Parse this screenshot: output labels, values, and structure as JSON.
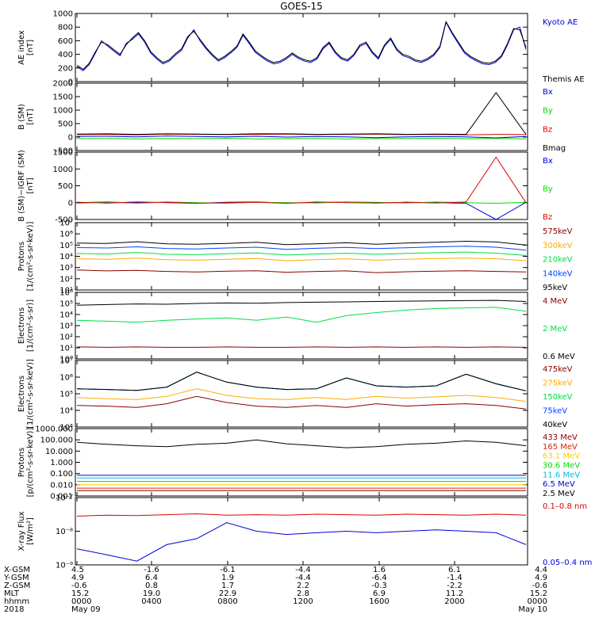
{
  "title": "GOES-15",
  "chart_data": [
    {
      "type": "line",
      "ylabel": "AE index\n[nT]",
      "yscale": "linear",
      "ylim": [
        0,
        1000
      ],
      "yticks": [
        0,
        200,
        400,
        600,
        800,
        1000
      ],
      "yticklabels": [
        "0",
        "200",
        "400",
        "600",
        "800",
        "1000"
      ],
      "series": [
        {
          "name": "Kyoto AE",
          "color": "#0000dd",
          "values": [
            220,
            160,
            250,
            420,
            600,
            520,
            450,
            380,
            560,
            620,
            700,
            580,
            420,
            330,
            260,
            300,
            390,
            460,
            640,
            760,
            600,
            480,
            380,
            300,
            350,
            420,
            500,
            680,
            560,
            430,
            360,
            300,
            260,
            280,
            330,
            400,
            340,
            300,
            280,
            330,
            480,
            560,
            420,
            330,
            300,
            380,
            520,
            560,
            420,
            330,
            520,
            620,
            460,
            380,
            350,
            300,
            280,
            320,
            380,
            500,
            870,
            700,
            560,
            420,
            350,
            300,
            260,
            250,
            280,
            360,
            540,
            760,
            800,
            470
          ]
        },
        {
          "name": "Themis AE",
          "color": "#000000",
          "values": [
            240,
            180,
            270,
            440,
            580,
            540,
            470,
            400,
            540,
            640,
            720,
            600,
            440,
            350,
            280,
            320,
            410,
            480,
            660,
            740,
            620,
            500,
            400,
            320,
            370,
            440,
            520,
            700,
            580,
            450,
            380,
            320,
            280,
            300,
            350,
            420,
            360,
            320,
            300,
            350,
            500,
            580,
            440,
            350,
            320,
            400,
            540,
            580,
            440,
            350,
            540,
            640,
            480,
            400,
            370,
            320,
            300,
            340,
            400,
            520,
            880,
            720,
            580,
            440,
            370,
            320,
            280,
            270,
            300,
            380,
            560,
            780,
            760,
            500
          ]
        }
      ]
    },
    {
      "type": "line",
      "ylabel": "B (SM)\n[nT]",
      "yscale": "linear",
      "ylim": [
        -500,
        2000
      ],
      "yticks": [
        -500,
        0,
        500,
        1000,
        1500,
        2000
      ],
      "yticklabels": [
        "-500",
        "0",
        "500",
        "1000",
        "1500",
        "2000"
      ],
      "series": [
        {
          "name": "Bx",
          "color": "#0000dd",
          "values": [
            20,
            30,
            10,
            40,
            20,
            10,
            30,
            0,
            20,
            10,
            -20,
            10,
            20,
            10,
            -30,
            20
          ]
        },
        {
          "name": "By",
          "color": "#00dd00",
          "values": [
            -60,
            -50,
            -70,
            -50,
            -60,
            -40,
            -70,
            -60,
            -50,
            -70,
            -60,
            -50,
            -40,
            -60,
            -50,
            -70
          ]
        },
        {
          "name": "Bz",
          "color": "#dd0000",
          "values": [
            90,
            100,
            80,
            110,
            100,
            90,
            100,
            110,
            90,
            100,
            110,
            90,
            100,
            80,
            100,
            90
          ]
        },
        {
          "name": "Bmag",
          "color": "#000000",
          "values": [
            110,
            120,
            100,
            120,
            110,
            100,
            120,
            120,
            100,
            110,
            120,
            100,
            110,
            100,
            1650,
            100
          ]
        }
      ]
    },
    {
      "type": "line",
      "ylabel": "B (SM)−IGRF (SM)\n[nT]",
      "yscale": "linear",
      "ylim": [
        -500,
        1500
      ],
      "yticks": [
        -500,
        0,
        500,
        1000,
        1500
      ],
      "yticklabels": [
        "-500",
        "0",
        "500",
        "1000",
        "1500"
      ],
      "series": [
        {
          "name": "Bx",
          "color": "#0000dd",
          "values": [
            10,
            -10,
            20,
            0,
            -20,
            10,
            20,
            -10,
            0,
            20,
            -10,
            10,
            0,
            -20,
            -600,
            10
          ]
        },
        {
          "name": "By",
          "color": "#00dd00",
          "values": [
            -20,
            10,
            -10,
            20,
            0,
            -20,
            10,
            0,
            -10,
            20,
            10,
            -10,
            20,
            0,
            -20,
            10
          ]
        },
        {
          "name": "Bz",
          "color": "#dd0000",
          "values": [
            0,
            20,
            -10,
            10,
            -20,
            0,
            10,
            -20,
            20,
            0,
            -10,
            10,
            -10,
            20,
            1350,
            0
          ]
        }
      ]
    },
    {
      "type": "line",
      "ylabel": "Protons\n[1/(cm²-s-sr-keV)]",
      "yscale": "log",
      "ylim": [
        10,
        10000000
      ],
      "yticks": [
        10,
        100,
        1000,
        10000,
        100000,
        1000000,
        10000000
      ],
      "yticklabels": [
        "10¹",
        "10²",
        "10³",
        "10⁴",
        "10⁵",
        "10⁶",
        "10⁷"
      ],
      "series": [
        {
          "name": "575keV",
          "color": "#880000",
          "values": [
            600,
            500,
            550,
            450,
            400,
            480,
            520,
            380,
            450,
            500,
            350,
            420,
            480,
            520,
            450,
            400
          ]
        },
        {
          "name": "300keV",
          "color": "#ffaa00",
          "values": [
            6000,
            5500,
            7000,
            5000,
            4500,
            5500,
            6500,
            4000,
            5000,
            6000,
            4500,
            5500,
            6500,
            7000,
            6000,
            4000
          ]
        },
        {
          "name": "210keV",
          "color": "#00dd44",
          "values": [
            18000,
            16000,
            22000,
            15000,
            14000,
            17000,
            20000,
            13000,
            16000,
            19000,
            15000,
            18000,
            21000,
            24000,
            19000,
            12000
          ]
        },
        {
          "name": "140keV",
          "color": "#0044ff",
          "values": [
            60000,
            55000,
            70000,
            50000,
            45000,
            55000,
            65000,
            42000,
            52000,
            62000,
            48000,
            58000,
            70000,
            80000,
            65000,
            35000
          ]
        },
        {
          "name": "95keV",
          "color": "#000000",
          "values": [
            150000,
            140000,
            200000,
            130000,
            120000,
            140000,
            180000,
            110000,
            130000,
            160000,
            120000,
            150000,
            180000,
            220000,
            190000,
            100000
          ]
        }
      ]
    },
    {
      "type": "line",
      "ylabel": "Electrons\n[1/(cm²-s-sr)]",
      "yscale": "log",
      "ylim": [
        1,
        1000000
      ],
      "yticks": [
        1,
        10,
        100,
        1000,
        10000,
        100000,
        1000000
      ],
      "yticklabels": [
        "10⁰",
        "10¹",
        "10²",
        "10³",
        "10⁴",
        "10⁵",
        "10⁶"
      ],
      "series": [
        {
          "name": "4 MeV",
          "color": "#880000",
          "values": [
            12,
            11,
            12,
            11,
            11,
            12,
            11,
            11,
            12,
            11,
            12,
            11,
            12,
            11,
            12,
            11
          ]
        },
        {
          "name": "2 MeV",
          "color": "#00dd44",
          "values": [
            3000,
            2500,
            2000,
            3000,
            4000,
            5000,
            3000,
            6000,
            2000,
            8000,
            15000,
            25000,
            35000,
            40000,
            45000,
            20000
          ]
        },
        {
          "name": "0.6 MeV",
          "color": "#000000",
          "values": [
            70000,
            80000,
            90000,
            85000,
            100000,
            110000,
            105000,
            120000,
            130000,
            140000,
            150000,
            160000,
            170000,
            180000,
            190000,
            150000
          ]
        }
      ]
    },
    {
      "type": "line",
      "ylabel": "Electrons\n[1/(cm²-s-sr-keV)]",
      "yscale": "log",
      "ylim": [
        1000,
        10000000
      ],
      "yticks": [
        1000,
        10000,
        100000,
        1000000,
        10000000
      ],
      "yticklabels": [
        "10³",
        "10⁴",
        "10⁵",
        "10⁶",
        "10⁷"
      ],
      "series": [
        {
          "name": "475keV",
          "color": "#880000",
          "values": [
            20000,
            18000,
            15000,
            25000,
            70000,
            30000,
            18000,
            15000,
            20000,
            15000,
            25000,
            18000,
            22000,
            25000,
            20000,
            12000
          ]
        },
        {
          "name": "275keV",
          "color": "#ffaa00",
          "values": [
            60000,
            50000,
            45000,
            70000,
            200000,
            80000,
            50000,
            45000,
            60000,
            45000,
            70000,
            55000,
            65000,
            80000,
            60000,
            35000
          ]
        },
        {
          "name": "150keV",
          "color": "#00dd44",
          "values": [
            200000,
            180000,
            160000,
            250000,
            2000000,
            500000,
            250000,
            180000,
            200000,
            900000,
            300000,
            250000,
            300000,
            1500000,
            400000,
            150000
          ]
        },
        {
          "name": "75keV",
          "color": "#0044ff",
          "values": [
            200000,
            180000,
            160000,
            250000,
            2000000,
            500000,
            250000,
            180000,
            200000,
            900000,
            300000,
            250000,
            300000,
            1500000,
            400000,
            150000
          ]
        },
        {
          "name": "40keV",
          "color": "#000000",
          "values": [
            200000,
            180000,
            160000,
            250000,
            2000000,
            500000,
            250000,
            180000,
            200000,
            900000,
            300000,
            250000,
            300000,
            1500000,
            400000,
            150000
          ]
        }
      ]
    },
    {
      "type": "line",
      "ylabel": "Protons\n[p/(cm²-s-sr-keV)]",
      "yscale": "log",
      "ylim": [
        0.001,
        1000
      ],
      "yticks": [
        0.001,
        0.01,
        0.1,
        1,
        10,
        100,
        1000
      ],
      "yticklabels": [
        "0.001",
        "0.010",
        "0.100",
        "1.000",
        "10.000",
        "100.000",
        "1000.000"
      ],
      "series": [
        {
          "name": "433 MeV",
          "color": "#880000",
          "values": [
            0.003,
            0.003,
            0.003,
            0.003,
            0.003,
            0.003,
            0.003,
            0.003,
            0.003,
            0.003,
            0.003,
            0.003,
            0.003,
            0.003,
            0.003,
            0.003
          ]
        },
        {
          "name": "165 MeV",
          "color": "#dd2200",
          "values": [
            0.005,
            0.005,
            0.005,
            0.005,
            0.005,
            0.005,
            0.005,
            0.005,
            0.005,
            0.005,
            0.005,
            0.005,
            0.005,
            0.005,
            0.005,
            0.005
          ]
        },
        {
          "name": "63.1 MeV",
          "color": "#ffcc00",
          "values": [
            0.01,
            0.01,
            0.01,
            0.01,
            0.01,
            0.01,
            0.01,
            0.01,
            0.01,
            0.01,
            0.01,
            0.01,
            0.01,
            0.01,
            0.01,
            0.01
          ]
        },
        {
          "name": "30.6 MeV",
          "color": "#00dd00",
          "values": [
            0.02,
            0.02,
            0.02,
            0.02,
            0.02,
            0.02,
            0.02,
            0.02,
            0.02,
            0.02,
            0.02,
            0.02,
            0.02,
            0.02,
            0.02,
            0.02
          ]
        },
        {
          "name": "11.6 MeV",
          "color": "#00bbdd",
          "values": [
            0.04,
            0.04,
            0.04,
            0.04,
            0.04,
            0.04,
            0.04,
            0.04,
            0.04,
            0.04,
            0.04,
            0.04,
            0.04,
            0.04,
            0.04,
            0.04
          ]
        },
        {
          "name": "6.5 MeV",
          "color": "#0000dd",
          "values": [
            0.07,
            0.07,
            0.07,
            0.07,
            0.07,
            0.07,
            0.07,
            0.07,
            0.07,
            0.07,
            0.07,
            0.07,
            0.07,
            0.07,
            0.07,
            0.07
          ]
        },
        {
          "name": "2.5 MeV",
          "color": "#000000",
          "values": [
            60,
            40,
            30,
            25,
            40,
            50,
            100,
            45,
            30,
            20,
            25,
            40,
            50,
            80,
            60,
            30
          ]
        }
      ]
    },
    {
      "type": "line",
      "ylabel": "X-ray Flux\n[W/m²]",
      "yscale": "log",
      "ylim": [
        1e-09,
        1e-07
      ],
      "yticks": [
        1e-09,
        1e-08,
        1e-07
      ],
      "yticklabels": [
        "10⁻⁹",
        "10⁻⁸",
        "10⁻⁷"
      ],
      "series": [
        {
          "name": "0.1–0.8 nm",
          "color": "#dd0000",
          "values": [
            2.8e-08,
            3e-08,
            2.9e-08,
            3.1e-08,
            3.3e-08,
            3e-08,
            3.1e-08,
            3e-08,
            3.2e-08,
            3.1e-08,
            3e-08,
            3.2e-08,
            3.1e-08,
            3e-08,
            3.2e-08,
            3e-08
          ]
        },
        {
          "name": "0.05–0.4 nm",
          "color": "#0000dd",
          "values": [
            3e-09,
            2e-09,
            1.3e-09,
            4e-09,
            6e-09,
            1.8e-08,
            1e-08,
            8e-09,
            9e-09,
            1e-08,
            9e-09,
            1e-08,
            1.1e-08,
            1e-08,
            9e-09,
            4e-09
          ]
        }
      ]
    }
  ],
  "ephemeris": {
    "labels": [
      "X-GSM",
      "Y-GSM",
      "Z-GSM",
      "MLT",
      "hhmm",
      "2018"
    ],
    "columns": [
      [
        "4.5",
        "4.9",
        "-0.6",
        "15.2",
        "0000",
        "May 09"
      ],
      [
        "-1.6",
        "6.4",
        "0.8",
        "19.0",
        "0400",
        ""
      ],
      [
        "-6.1",
        "1.9",
        "1.7",
        "22.9",
        "0800",
        ""
      ],
      [
        "-4.4",
        "-4.4",
        "2.2",
        "2.8",
        "1200",
        ""
      ],
      [
        "1.6",
        "-6.4",
        "-0.3",
        "6.9",
        "1600",
        ""
      ],
      [
        "6.1",
        "-1.4",
        "-2.2",
        "11.2",
        "2000",
        ""
      ],
      [
        "4.4",
        "4.9",
        "-0.6",
        "15.2",
        "0000",
        "May 10"
      ]
    ]
  }
}
